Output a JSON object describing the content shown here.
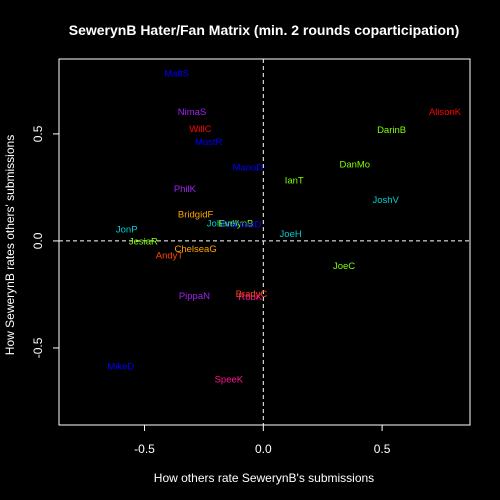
{
  "chart_data": {
    "type": "scatter",
    "title": "SewerynB Hater/Fan Matrix (min. 2 rounds coparticipation)",
    "xlabel": "How others rate SewerynB's submissions",
    "ylabel": "How SewerynB rates others' submissions",
    "xlim": [
      -0.86,
      0.87
    ],
    "ylim": [
      -0.86,
      0.85
    ],
    "xticks": [
      -0.5,
      0.0,
      0.5
    ],
    "yticks": [
      -0.5,
      0.0,
      0.5
    ],
    "tick_labels_x": [
      "-0.5",
      "0.0",
      "0.5"
    ],
    "tick_labels_y": [
      "-0.5",
      "0.0",
      "0.5"
    ],
    "reference_lines": {
      "x": 0,
      "y": 0,
      "style": "dashed"
    },
    "grid": false,
    "points": [
      {
        "label": "MattS",
        "x": -0.365,
        "y": 0.78,
        "color": "#0000ff"
      },
      {
        "label": "NimaS",
        "x": -0.3,
        "y": 0.6,
        "color": "#a020f0"
      },
      {
        "label": "WillC",
        "x": -0.265,
        "y": 0.52,
        "color": "#ff0000"
      },
      {
        "label": "MustR",
        "x": -0.23,
        "y": 0.46,
        "color": "#0000ff"
      },
      {
        "label": "AlisonK",
        "x": 0.765,
        "y": 0.6,
        "color": "#ff0000"
      },
      {
        "label": "DarinB",
        "x": 0.54,
        "y": 0.515,
        "color": "#7fff00"
      },
      {
        "label": "DanMo",
        "x": 0.385,
        "y": 0.355,
        "color": "#7fff00"
      },
      {
        "label": "MarioD",
        "x": -0.065,
        "y": 0.34,
        "color": "#0000ff"
      },
      {
        "label": "IanT",
        "x": 0.13,
        "y": 0.28,
        "color": "#7fff00"
      },
      {
        "label": "PhilK",
        "x": -0.33,
        "y": 0.24,
        "color": "#a020f0"
      },
      {
        "label": "JoshV",
        "x": 0.515,
        "y": 0.19,
        "color": "#00ced1"
      },
      {
        "label": "BridgidF",
        "x": -0.285,
        "y": 0.12,
        "color": "#ffa500"
      },
      {
        "label": "JohanV",
        "x": -0.17,
        "y": 0.08,
        "color": "#00ced1"
      },
      {
        "label": "EvelynB",
        "x": -0.115,
        "y": 0.08,
        "color": "#7fff00"
      },
      {
        "label": "ThomasD",
        "x": -0.095,
        "y": 0.075,
        "color": "#0000ff"
      },
      {
        "label": "JonP",
        "x": -0.575,
        "y": 0.05,
        "color": "#00ced1"
      },
      {
        "label": "JoeH",
        "x": 0.115,
        "y": 0.03,
        "color": "#00ced1"
      },
      {
        "label": "JesiaR",
        "x": -0.505,
        "y": -0.005,
        "color": "#7fff00"
      },
      {
        "label": "ChelseaG",
        "x": -0.285,
        "y": -0.04,
        "color": "#ffa500"
      },
      {
        "label": "AndyT",
        "x": -0.395,
        "y": -0.07,
        "color": "#ff4500"
      },
      {
        "label": "JoeC",
        "x": 0.34,
        "y": -0.12,
        "color": "#7fff00"
      },
      {
        "label": "BradyC",
        "x": -0.05,
        "y": -0.25,
        "color": "#ff4500"
      },
      {
        "label": "RobK",
        "x": -0.055,
        "y": -0.265,
        "color": "#ff1493"
      },
      {
        "label": "PippaN",
        "x": -0.29,
        "y": -0.26,
        "color": "#a020f0"
      },
      {
        "label": "MikeD",
        "x": -0.6,
        "y": -0.59,
        "color": "#0000ff"
      },
      {
        "label": "SpeeK",
        "x": -0.145,
        "y": -0.65,
        "color": "#ff1493"
      }
    ]
  }
}
